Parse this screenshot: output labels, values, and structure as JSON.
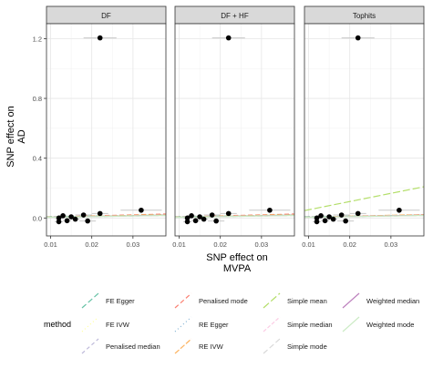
{
  "chart_data": {
    "type": "scatter",
    "description_free": true,
    "xlabel": "SNP effect on\nMVPA",
    "ylabel": "SNP effect on\nAD",
    "xlim": [
      0.009,
      0.038
    ],
    "ylim": [
      -0.12,
      1.3
    ],
    "x_ticks": [
      0.01,
      0.02,
      0.03
    ],
    "x_tick_labels": [
      "0.01",
      "0.02",
      "0.03"
    ],
    "y_ticks": [
      0.0,
      0.4,
      0.8,
      1.2
    ],
    "y_tick_labels": [
      "0.0",
      "0.4",
      "0.8",
      "1.2"
    ],
    "panels": [
      "DF",
      "DF + HF",
      "Tophits"
    ],
    "points": [
      {
        "x": 0.022,
        "y": 1.205,
        "xerr": 0.004
      },
      {
        "x": 0.032,
        "y": 0.052,
        "xerr": 0.005
      },
      {
        "x": 0.022,
        "y": 0.03,
        "xerr": 0.002
      },
      {
        "x": 0.018,
        "y": 0.02,
        "xerr": 0.002
      },
      {
        "x": 0.013,
        "y": 0.015,
        "xerr": 0.001
      },
      {
        "x": 0.015,
        "y": 0.008,
        "xerr": 0.001
      },
      {
        "x": 0.012,
        "y": 0.0,
        "xerr": 0.001
      },
      {
        "x": 0.016,
        "y": -0.008,
        "xerr": 0.001
      },
      {
        "x": 0.014,
        "y": -0.018,
        "xerr": 0.001
      },
      {
        "x": 0.012,
        "y": -0.025,
        "xerr": 0.001
      },
      {
        "x": 0.019,
        "y": -0.02,
        "xerr": 0.002
      }
    ],
    "series": [
      {
        "name": "FE Egger",
        "color": "#66c2a5",
        "dash": "6,3",
        "intercepts": [
          0.005,
          0.005,
          0.005
        ],
        "slopes": [
          0.35,
          0.35,
          0.35
        ]
      },
      {
        "name": "FE IVW",
        "color": "#ffff99",
        "dash": "1,3",
        "intercepts": [
          0.0,
          0.0,
          0.0
        ],
        "slopes": [
          0.6,
          0.6,
          0.6
        ]
      },
      {
        "name": "Penalised median",
        "color": "#bebada",
        "dash": "4,3",
        "intercepts": [
          0.0,
          0.0,
          0.0
        ],
        "slopes": [
          0.45,
          0.45,
          0.45
        ]
      },
      {
        "name": "Penalised mode",
        "color": "#fb8072",
        "dash": "5,3",
        "intercepts": [
          0.0,
          0.0,
          0.0
        ],
        "slopes": [
          0.7,
          0.7,
          0.5
        ]
      },
      {
        "name": "RE Egger",
        "color": "#80b1d3",
        "dash": "1,3",
        "intercepts": [
          0.005,
          0.005,
          0.005
        ],
        "slopes": [
          0.35,
          0.35,
          0.35
        ]
      },
      {
        "name": "RE IVW",
        "color": "#fdb462",
        "dash": "6,2",
        "intercepts": [
          0.0,
          0.0,
          0.0
        ],
        "slopes": [
          0.6,
          0.6,
          0.6
        ]
      },
      {
        "name": "Simple mean",
        "color": "#b3de69",
        "dash": "8,3",
        "intercepts": [
          0.0,
          0.0,
          0.0
        ],
        "slopes": [
          0.55,
          0.55,
          5.5
        ]
      },
      {
        "name": "Simple median",
        "color": "#fccde5",
        "dash": "4,2",
        "intercepts": [
          0.0,
          0.0,
          0.0
        ],
        "slopes": [
          0.5,
          0.5,
          0.5
        ]
      },
      {
        "name": "Simple mode",
        "color": "#d9d9d9",
        "dash": "6,3",
        "intercepts": [
          0.0,
          0.0,
          0.0
        ],
        "slopes": [
          0.45,
          0.45,
          0.45
        ]
      },
      {
        "name": "Weighted median",
        "color": "#bc80bd",
        "dash": "",
        "intercepts": [
          0.0,
          0.0,
          0.0
        ],
        "slopes": [
          0.5,
          0.5,
          0.5
        ]
      },
      {
        "name": "Weighted mode",
        "color": "#ccebc5",
        "dash": "",
        "intercepts": [
          0.0,
          0.0,
          0.0
        ],
        "slopes": [
          0.45,
          0.45,
          0.45
        ]
      }
    ],
    "legend": {
      "title": "method",
      "position": "bottom",
      "items": [
        "FE Egger",
        "FE IVW",
        "Penalised median",
        "Penalised mode",
        "RE Egger",
        "RE IVW",
        "Simple mean",
        "Simple median",
        "Simple mode",
        "Weighted median",
        "Weighted mode"
      ]
    },
    "grid": true
  }
}
